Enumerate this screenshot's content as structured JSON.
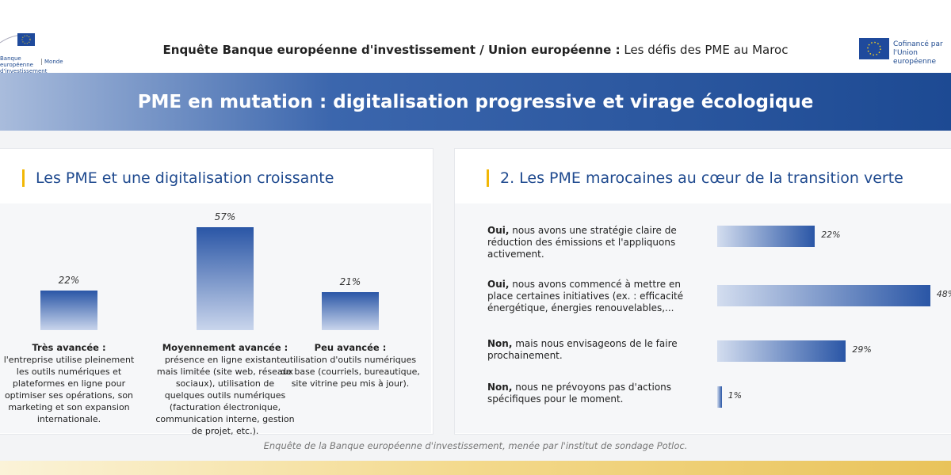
{
  "header": {
    "logo_left": {
      "name": "Banque européenne d'investissement",
      "suffix": "Monde"
    },
    "title_bold": "Enquête Banque européenne d'investissement / Union européenne :",
    "title_rest": "Les défis des PME au Maroc",
    "logo_right": [
      "Cofinancé par",
      "l'Union européenne"
    ]
  },
  "banner": "PME en mutation : digitalisation progressive et virage écologique",
  "chart_data": [
    {
      "type": "bar",
      "orientation": "vertical",
      "title": "Les PME et une digitalisation croissante",
      "categories": [
        "Très avancée :",
        "Moyennement avancée :",
        "Peu avancée :"
      ],
      "descriptions": [
        "l'entreprise utilise pleinement les outils numériques et plateformes en ligne pour optimiser ses opérations, son marketing et son expansion internationale.",
        "présence en ligne existante mais limitée (site web, réseaux sociaux), utilisation de quelques outils numériques (facturation électronique, communication interne, gestion de projet, etc.).",
        "utilisation d'outils numériques de base (courriels, bureautique, site vitrine peu mis à jour)."
      ],
      "values": [
        22,
        57,
        21
      ],
      "value_labels": [
        "22%",
        "57%",
        "21%"
      ],
      "color": "#2a56a6"
    },
    {
      "type": "bar",
      "orientation": "horizontal",
      "title": "2.  Les PME marocaines au cœur de la transition verte",
      "category_prefixes": [
        "Oui,",
        "Oui,",
        "Non,",
        "Non,"
      ],
      "categories": [
        "nous avons une stratégie claire de réduction des émissions et l'appliquons activement.",
        "nous avons commencé à mettre en place certaines initiatives (ex. : efficacité énergétique, énergies renouvelables,...",
        "mais nous envisageons de le faire prochainement.",
        "nous ne prévoyons pas d'actions spécifiques pour le moment."
      ],
      "values": [
        22,
        48,
        29,
        1
      ],
      "value_labels": [
        "22%",
        "48%",
        "29%",
        "1%"
      ],
      "color": "#2a56a6"
    }
  ],
  "footer": "Enquête de la Banque européenne d'investissement, menée  par l'institut de sondage Potloc."
}
